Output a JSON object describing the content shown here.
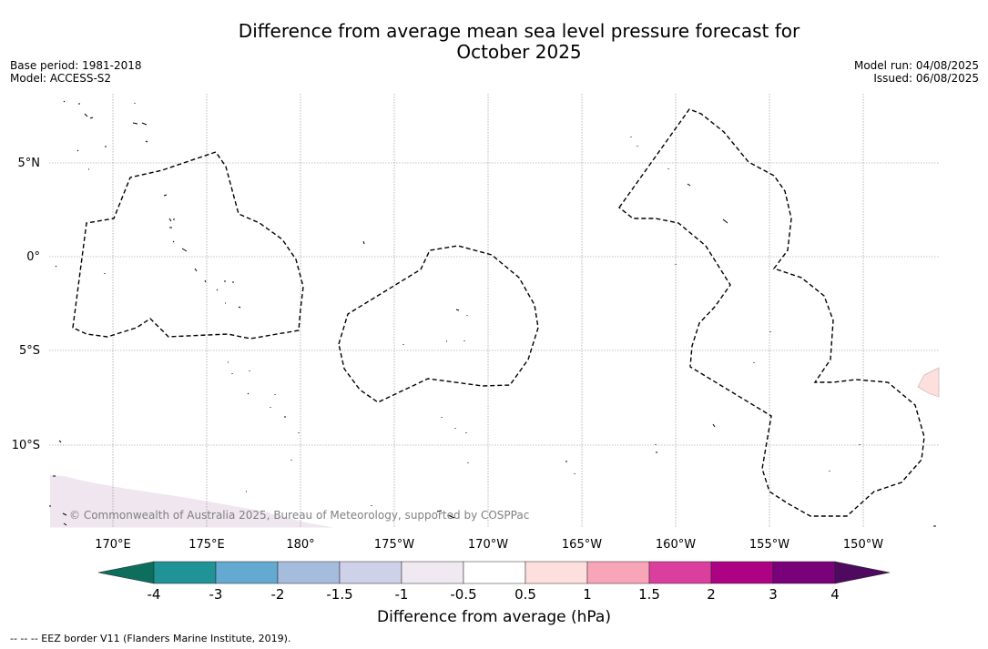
{
  "header": {
    "title_line1": "Difference from average mean sea level pressure forecast for",
    "title_line2": "October 2025",
    "base_period": "Base period: 1981-2018",
    "model": "Model: ACCESS-S2",
    "model_run": "Model run: 04/08/2025",
    "issued": "Issued: 06/08/2025"
  },
  "map": {
    "lat_labels": [
      "5°N",
      "0°",
      "5°S",
      "10°S"
    ],
    "lon_labels": [
      "170°E",
      "175°E",
      "180°",
      "175°W",
      "170°W",
      "165°W",
      "160°W",
      "155°W",
      "150°W"
    ],
    "copyright": "© Commonwealth of Australia 2025, Bureau of Meteorology, supported by COSPPac",
    "line_color": "#000000",
    "grid_color": "#888888"
  },
  "colorbar": {
    "label": "Difference from average (hPa)",
    "ticks": [
      "-4",
      "-3",
      "-2",
      "-1.5",
      "-1",
      "-0.5",
      "0.5",
      "1",
      "1.5",
      "2",
      "3",
      "4"
    ],
    "under_color": "#0e6e5e",
    "over_color": "#4d0a5e",
    "colors": [
      "#1f9396",
      "#63a9d0",
      "#a6bcdc",
      "#cfd1e8",
      "#f0e9f2",
      "#ffffff",
      "#fde0de",
      "#f9a5b9",
      "#da3f9d",
      "#ac0283",
      "#79027a"
    ]
  },
  "footnote": "--  --  -- EEZ border V11 (Flanders Marine Institute, 2019)."
}
